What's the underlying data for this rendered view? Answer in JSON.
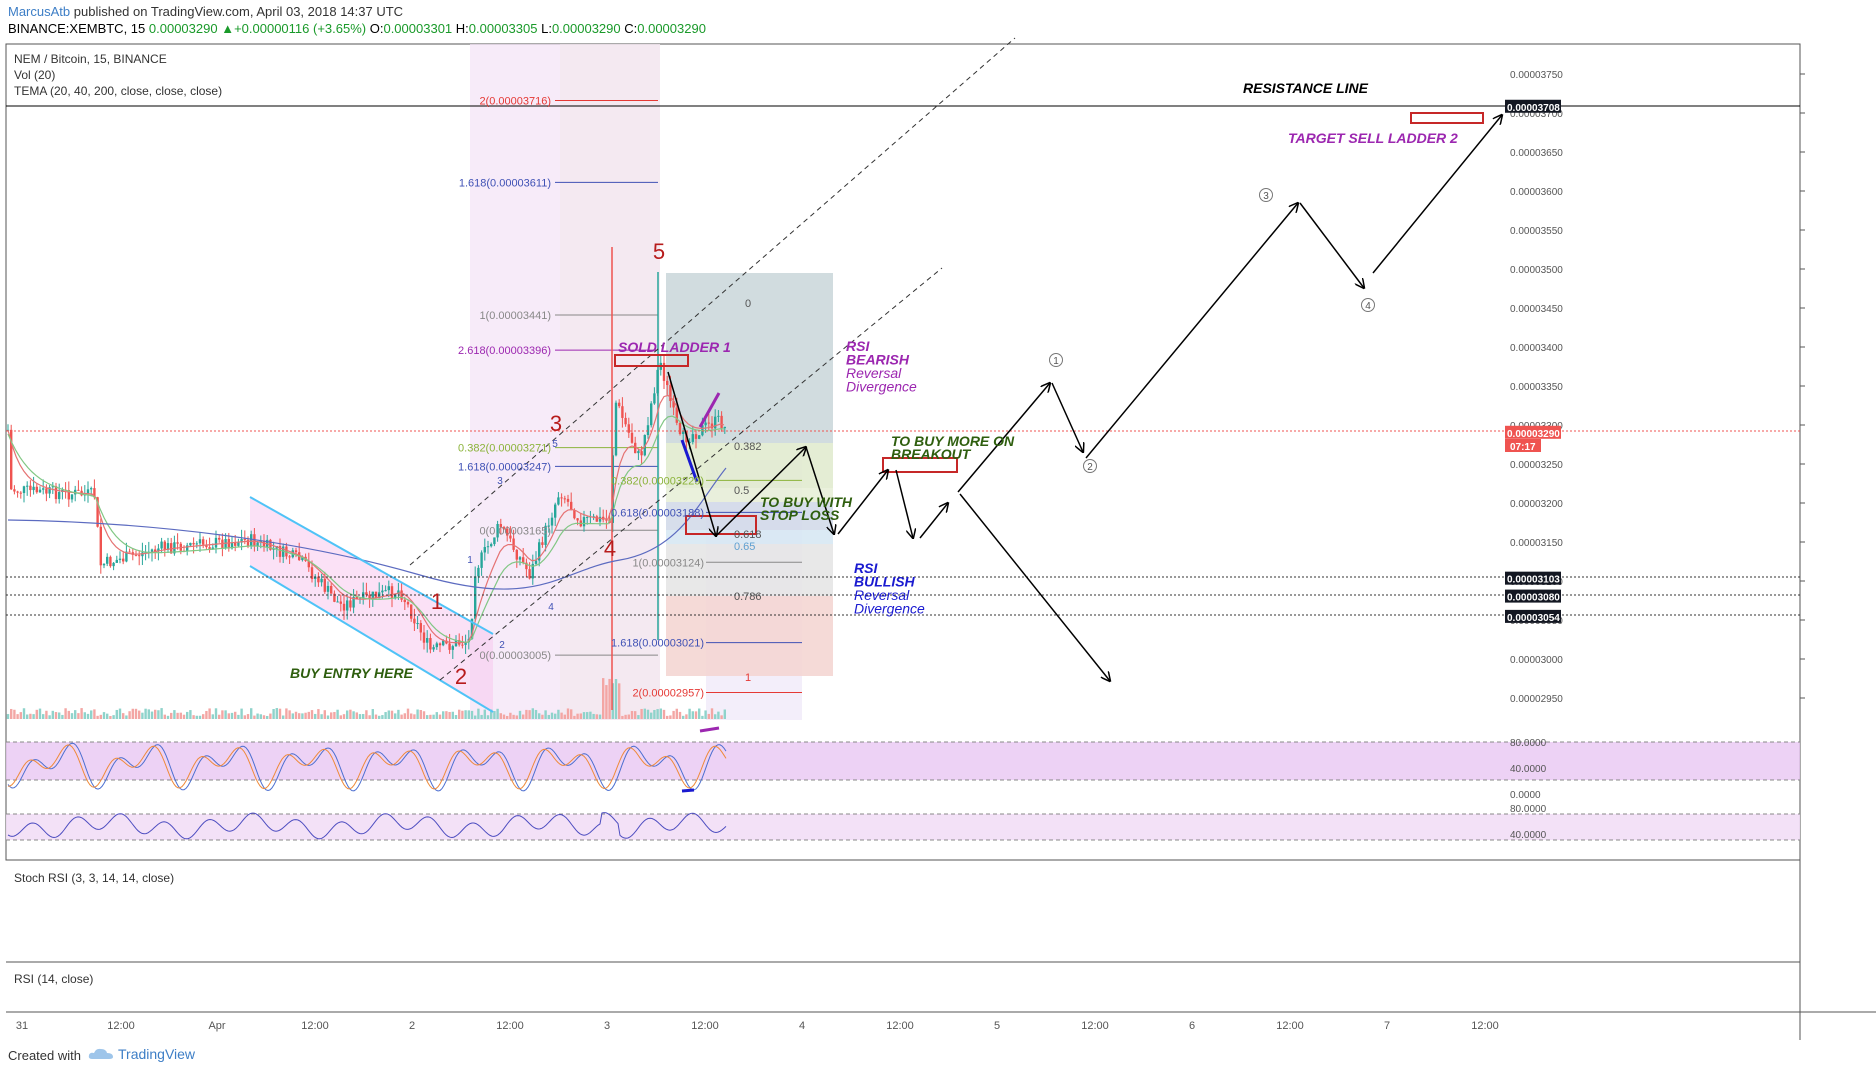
{
  "header": {
    "author": "MarcusAtb",
    "published": " published on TradingView.com, April 03, 2018 14:37 UTC",
    "symbol": "BINANCE:XEMBTC, 15",
    "price": "0.00003290",
    "change": "+0.00000116 (+3.65%)",
    "o_label": "O:",
    "o": "0.00003301",
    "h_label": "H:",
    "h": "0.00003305",
    "l_label": "L:",
    "l": "0.00003290",
    "c_label": "C:",
    "c": "0.00003290"
  },
  "legend": {
    "title": "NEM / Bitcoin, 15, BINANCE",
    "vol": "Vol (20)",
    "tema": "TEMA (20, 40, 200, close, close, close)",
    "stoch": "Stoch RSI (3, 3, 14, 14, close)",
    "rsi": "RSI (14, close)"
  },
  "footer": {
    "created": "Created with",
    "brand": "TradingView"
  },
  "colors": {
    "up": "#26a69a",
    "down": "#ef5350",
    "fib_green": "#8bb33a",
    "fib_purple": "#9c27b0",
    "fib_blue": "#3f51b5",
    "fib_red": "#e53935",
    "annot_purple": "#9c27b0",
    "annot_green": "#2e5e0e",
    "annot_blue": "#1a1ad0",
    "annot_darkred": "#b71c1c"
  },
  "chart_data": {
    "type": "candlestick",
    "ylim": [
      2.9e-05,
      3.81e-05
    ],
    "y_ticks": [
      "0.00003750",
      "0.00003700",
      "0.00003650",
      "0.00003600",
      "0.00003550",
      "0.00003500",
      "0.00003450",
      "0.00003400",
      "0.00003350",
      "0.00003300",
      "0.00003250",
      "0.00003200",
      "0.00003150",
      "0.00003100",
      "0.00003050",
      "0.00003000",
      "0.00002950"
    ],
    "x_ticks": [
      "31",
      "12:00",
      "Apr",
      "12:00",
      "2",
      "12:00",
      "3",
      "12:00",
      "4",
      "12:00",
      "5",
      "12:00",
      "6",
      "12:00",
      "7",
      "12:00"
    ],
    "price_tags": [
      {
        "label": "0.00003708",
        "value": 3.708e-05,
        "style": "dark"
      },
      {
        "label": "0.00003290",
        "value": 3.29e-05,
        "style": "red"
      },
      {
        "label": "07:17",
        "value": 3.27e-05,
        "style": "red"
      },
      {
        "label": "0.00003103",
        "value": 3.103e-05,
        "style": "dark"
      },
      {
        "label": "0.00003080",
        "value": 3.08e-05,
        "style": "dark"
      },
      {
        "label": "0.00003054",
        "value": 3.054e-05,
        "style": "dark"
      }
    ],
    "fib_left": [
      {
        "label": "2(0.00003716)",
        "value": 3.716e-05,
        "color": "#e53935"
      },
      {
        "label": "1.618(0.00003611)",
        "value": 3.611e-05,
        "color": "#3f51b5"
      },
      {
        "label": "1(0.00003441)",
        "value": 3.441e-05,
        "color": "#888"
      },
      {
        "label": "2.618(0.00003396)",
        "value": 3.396e-05,
        "color": "#9c27b0"
      },
      {
        "label": "0.382(0.00003271)",
        "value": 3.271e-05,
        "color": "#8bb33a"
      },
      {
        "label": "1.618(0.00003247)",
        "value": 3.247e-05,
        "color": "#3f51b5"
      },
      {
        "label": "0(0.00003165)",
        "value": 3.165e-05,
        "color": "#888"
      },
      {
        "label": "0(0.00003005)",
        "value": 3.005e-05,
        "color": "#888"
      }
    ],
    "fib_right": [
      {
        "label": "0.382(0.00003229)",
        "value": 3.229e-05,
        "color": "#8bb33a"
      },
      {
        "label": "0.618(0.00003188)",
        "value": 3.188e-05,
        "color": "#3f51b5"
      },
      {
        "label": "1(0.00003124)",
        "value": 3.124e-05,
        "color": "#888"
      },
      {
        "label": "1.618(0.00003021)",
        "value": 3.021e-05,
        "color": "#3f51b5"
      },
      {
        "label": "2(0.00002957)",
        "value": 2.957e-05,
        "color": "#e53935"
      }
    ],
    "retracement": [
      "0",
      "0.382",
      "0.5",
      "0.618",
      "0.65",
      "0.786",
      "1"
    ],
    "wave_labels_main": [
      "1",
      "2",
      "3",
      "4",
      "5"
    ],
    "wave_labels_small": [
      "1",
      "2",
      "3",
      "4",
      "5"
    ],
    "wave_labels_future": [
      "1",
      "2",
      "3",
      "4"
    ],
    "annotations": {
      "resistance": "RESISTANCE LINE",
      "target": "TARGET SELL  LADDER 2",
      "sold": "SOLD LADDER 1",
      "rsi_bear": [
        "RSI",
        "BEARISH",
        "Reversal",
        "Divergence"
      ],
      "buy_more": [
        "TO BUY MORE ON",
        "BREAKOUT"
      ],
      "buy_stop": [
        "TO BUY WITH",
        "STOP LOSS"
      ],
      "rsi_bull": [
        "RSI",
        "BULLISH",
        "Reversal",
        "Divergence"
      ],
      "buy_entry": "BUY ENTRY HERE"
    },
    "stoch_ticks": [
      "80.0000",
      "40.0000",
      "0.0000"
    ],
    "rsi_ticks": [
      "80.0000",
      "40.0000"
    ]
  }
}
